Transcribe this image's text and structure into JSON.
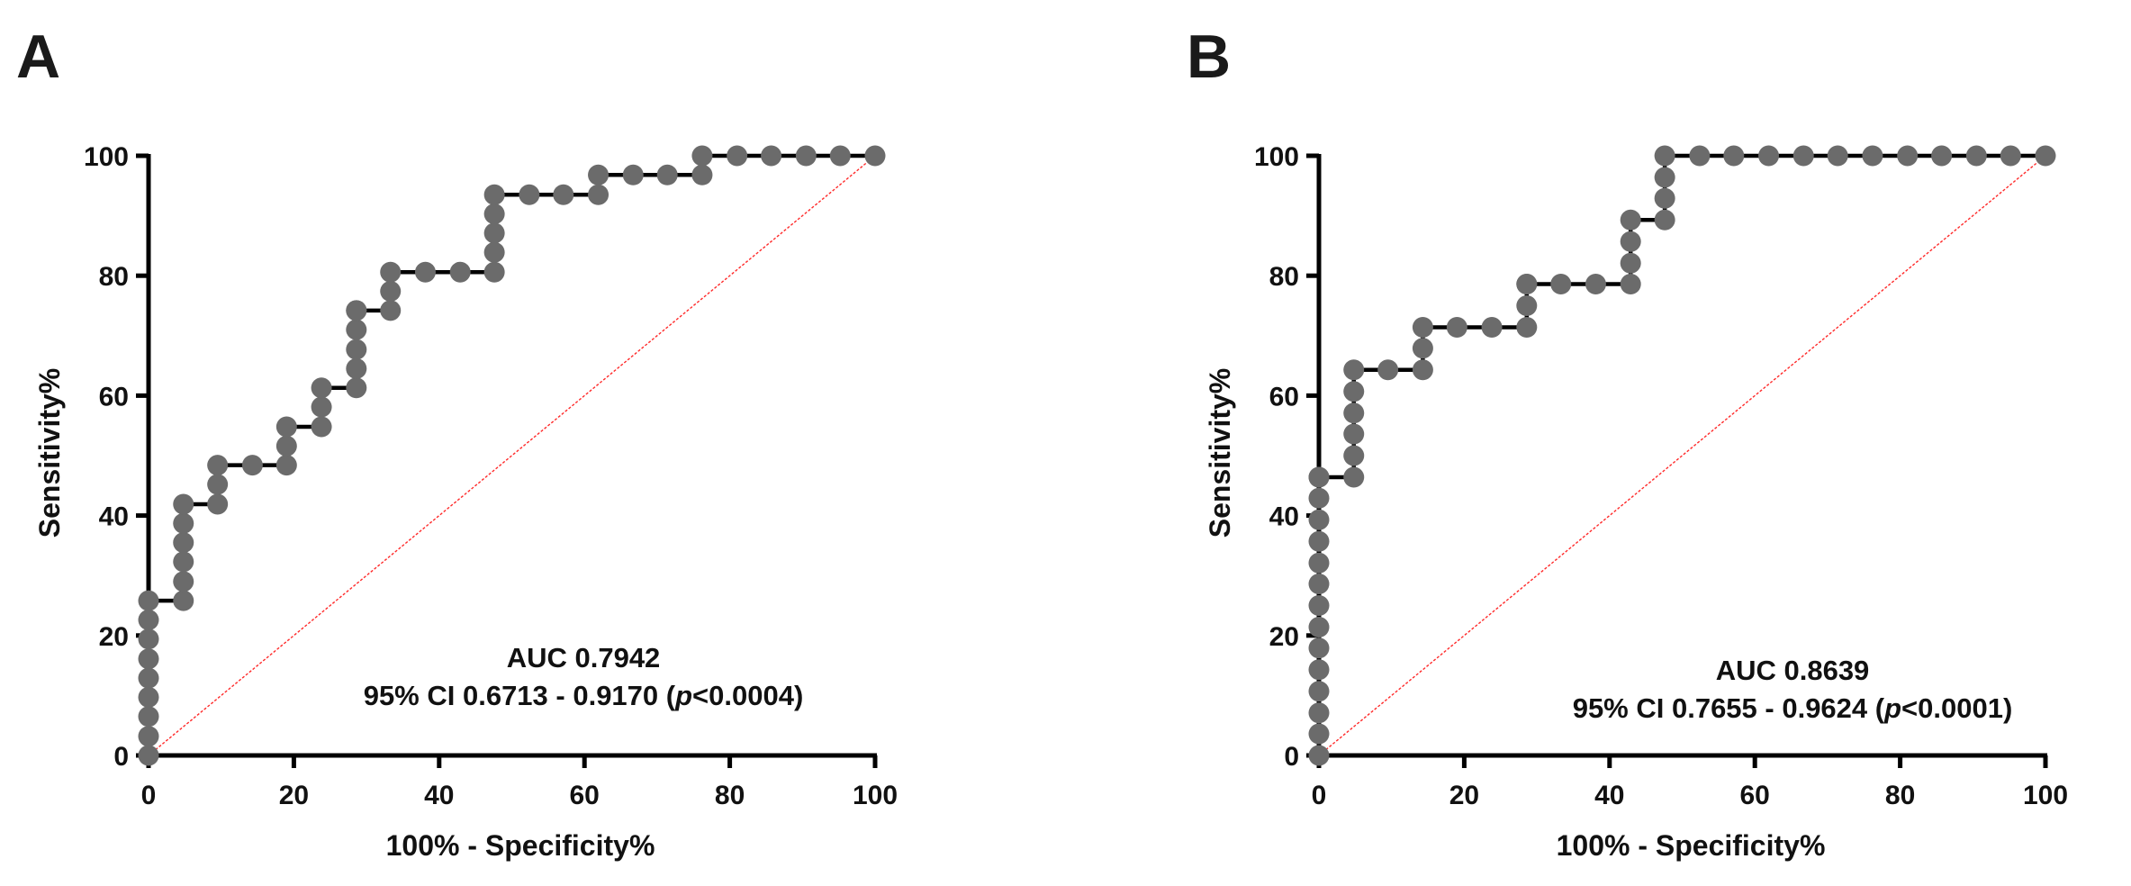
{
  "chart_data": [
    {
      "type": "line",
      "panel_label": "A",
      "xlabel": "100% - Specificity%",
      "ylabel": "Sensitivity%",
      "xlim": [
        0,
        100
      ],
      "ylim": [
        0,
        100
      ],
      "x_ticks": [
        "0",
        "20",
        "40",
        "60",
        "80",
        "100"
      ],
      "y_ticks": [
        "0",
        "20",
        "40",
        "60",
        "80",
        "100"
      ],
      "reference_line": "diagonal",
      "annotation_line1": "AUC 0.7942",
      "annotation_ci": "95% CI 0.6713 - 0.9170 (",
      "annotation_p": "p",
      "annotation_p_value": "<0.0004)",
      "series": [
        {
          "x": [
            0,
            0,
            0,
            0,
            0,
            0,
            0,
            0,
            0,
            4.8,
            4.8,
            4.8,
            4.8,
            4.8,
            4.8,
            9.5,
            9.5,
            9.5,
            14.3,
            19.0,
            19.0,
            19.0,
            23.8,
            23.8,
            23.8,
            28.6,
            28.6,
            28.6,
            28.6,
            28.6,
            28.6,
            33.3,
            33.3,
            33.3,
            38.1,
            42.9,
            47.6,
            47.6,
            47.6,
            47.6,
            47.6,
            52.4,
            57.1,
            61.9,
            61.9,
            66.7,
            71.4,
            76.2,
            76.2,
            81.0,
            85.7,
            90.5,
            95.2,
            100
          ],
          "y": [
            0,
            3.2,
            6.5,
            9.7,
            12.9,
            16.1,
            19.4,
            22.6,
            25.8,
            25.8,
            29.0,
            32.3,
            35.5,
            38.7,
            41.9,
            41.9,
            45.2,
            48.4,
            48.4,
            48.4,
            51.6,
            54.8,
            54.8,
            58.1,
            61.3,
            61.3,
            64.5,
            67.7,
            71.0,
            74.2,
            74.2,
            74.2,
            77.4,
            80.6,
            80.6,
            80.6,
            80.6,
            83.9,
            87.1,
            90.3,
            93.5,
            93.5,
            93.5,
            93.5,
            96.8,
            96.8,
            96.8,
            96.8,
            100,
            100,
            100,
            100,
            100,
            100
          ]
        }
      ]
    },
    {
      "type": "line",
      "panel_label": "B",
      "xlabel": "100% - Specificity%",
      "ylabel": "Sensitivity%",
      "xlim": [
        0,
        100
      ],
      "ylim": [
        0,
        100
      ],
      "x_ticks": [
        "0",
        "20",
        "40",
        "60",
        "80",
        "100"
      ],
      "y_ticks": [
        "0",
        "20",
        "40",
        "60",
        "80",
        "100"
      ],
      "reference_line": "diagonal",
      "annotation_line1": "AUC 0.8639",
      "annotation_ci": "95% CI 0.7655 - 0.9624 (",
      "annotation_p": "p",
      "annotation_p_value": "<0.0001)",
      "series": [
        {
          "x": [
            0,
            0,
            0,
            0,
            0,
            0,
            0,
            0,
            0,
            0,
            0,
            0,
            0,
            0,
            0,
            4.8,
            4.8,
            4.8,
            4.8,
            4.8,
            4.8,
            9.5,
            14.3,
            14.3,
            14.3,
            19.0,
            23.8,
            28.6,
            28.6,
            28.6,
            28.6,
            33.3,
            38.1,
            42.9,
            42.9,
            42.9,
            42.9,
            47.6,
            47.6,
            47.6,
            47.6,
            52.4,
            57.1,
            61.9,
            66.7,
            71.4,
            76.2,
            81.0,
            85.7,
            90.5,
            95.2,
            100
          ],
          "y": [
            0,
            3.6,
            7.1,
            10.7,
            14.3,
            17.9,
            21.4,
            25.0,
            28.6,
            32.1,
            35.7,
            39.3,
            42.9,
            46.4,
            46.4,
            46.4,
            50.0,
            53.6,
            57.1,
            60.7,
            64.3,
            64.3,
            64.3,
            67.9,
            71.4,
            71.4,
            71.4,
            71.4,
            75.0,
            78.6,
            78.6,
            78.6,
            78.6,
            78.6,
            82.1,
            85.7,
            89.3,
            89.3,
            92.9,
            96.4,
            100,
            100,
            100,
            100,
            100,
            100,
            100,
            100,
            100,
            100,
            100,
            100
          ]
        }
      ]
    }
  ]
}
